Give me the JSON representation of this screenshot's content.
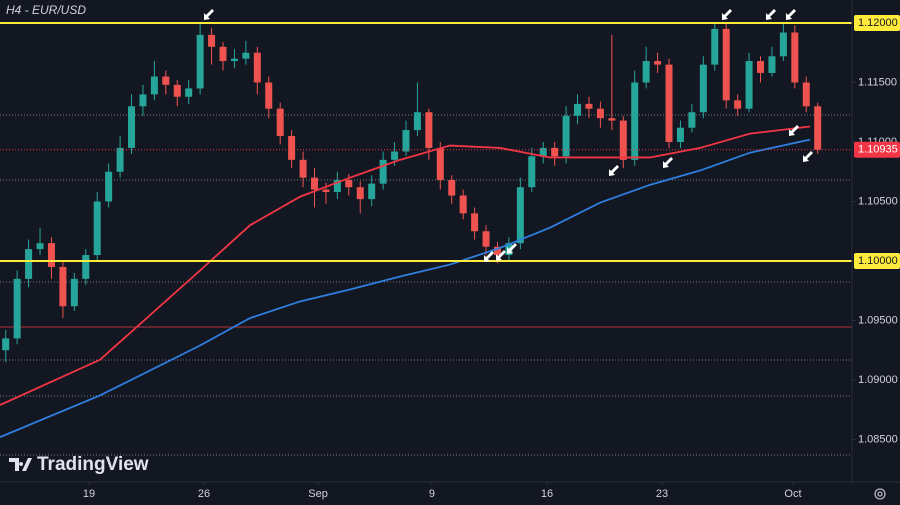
{
  "chart_data": {
    "type": "candlestick",
    "title": "H4 - EUR/USD",
    "watermark": "TradingView",
    "up_color": "#26a69a",
    "down_color": "#ef5350",
    "open": [
      1.0925,
      1.0935,
      1.0985,
      1.101,
      1.1015,
      1.0995,
      1.0962,
      1.0985,
      1.1005,
      1.105,
      1.1075,
      1.1095,
      1.113,
      1.114,
      1.1155,
      1.1148,
      1.1138,
      1.1145,
      1.119,
      1.118,
      1.1168,
      1.117,
      1.1175,
      1.115,
      1.1128,
      1.1105,
      1.1085,
      1.107,
      1.106,
      1.1058,
      1.1068,
      1.1062,
      1.1052,
      1.1065,
      1.1085,
      1.1092,
      1.111,
      1.1125,
      1.1095,
      1.1068,
      1.1055,
      1.104,
      1.1025,
      1.1012,
      1.1005,
      1.1015,
      1.1062,
      1.1088,
      1.1095,
      1.1088,
      1.1122,
      1.1132,
      1.1128,
      1.112,
      1.1118,
      1.1085,
      1.115,
      1.1168,
      1.1165,
      1.11,
      1.1112,
      1.1125,
      1.1165,
      1.1195,
      1.1135,
      1.1128,
      1.1168,
      1.1158,
      1.1172,
      1.1192,
      1.115,
      1.113
    ],
    "high": [
      1.0942,
      1.0992,
      1.1018,
      1.1028,
      1.102,
      1.1,
      1.099,
      1.101,
      1.1058,
      1.1082,
      1.1105,
      1.114,
      1.1148,
      1.1168,
      1.116,
      1.1152,
      1.1152,
      1.12,
      1.1196,
      1.1184,
      1.1178,
      1.1185,
      1.118,
      1.1155,
      1.1133,
      1.111,
      1.1092,
      1.1078,
      1.1066,
      1.1075,
      1.1073,
      1.1067,
      1.1072,
      1.1092,
      1.11,
      1.1118,
      1.115,
      1.1128,
      1.11,
      1.1072,
      1.106,
      1.1045,
      1.103,
      1.1016,
      1.102,
      1.107,
      1.1095,
      1.11,
      1.11,
      1.113,
      1.114,
      1.1138,
      1.1134,
      1.119,
      1.1122,
      1.116,
      1.118,
      1.1175,
      1.117,
      1.1118,
      1.1132,
      1.1172,
      1.12,
      1.12,
      1.114,
      1.1175,
      1.1172,
      1.118,
      1.12,
      1.1198,
      1.1155,
      1.1133
    ],
    "low": [
      1.0915,
      1.093,
      1.0978,
      1.1005,
      1.0985,
      1.0952,
      1.0958,
      1.098,
      1.1,
      1.1045,
      1.107,
      1.109,
      1.1122,
      1.1135,
      1.114,
      1.113,
      1.1132,
      1.114,
      1.1165,
      1.116,
      1.1162,
      1.1165,
      1.114,
      1.112,
      1.1098,
      1.1078,
      1.1062,
      1.1045,
      1.1048,
      1.1052,
      1.1055,
      1.104,
      1.1046,
      1.106,
      1.108,
      1.1088,
      1.1105,
      1.1085,
      1.106,
      1.1048,
      1.1035,
      1.1018,
      1.1005,
      1.0998,
      1.1,
      1.101,
      1.1058,
      1.1082,
      1.108,
      1.1082,
      1.1115,
      1.112,
      1.1112,
      1.111,
      1.1078,
      1.108,
      1.1145,
      1.1158,
      1.1095,
      1.1095,
      1.1108,
      1.112,
      1.116,
      1.1128,
      1.1122,
      1.1125,
      1.115,
      1.1155,
      1.1168,
      1.1145,
      1.1125,
      1.109
    ],
    "close": [
      1.0935,
      1.0985,
      1.101,
      1.1015,
      1.0995,
      1.0962,
      1.0985,
      1.1005,
      1.105,
      1.1075,
      1.1095,
      1.113,
      1.114,
      1.1155,
      1.1148,
      1.1138,
      1.1145,
      1.119,
      1.118,
      1.1168,
      1.117,
      1.1175,
      1.115,
      1.1128,
      1.1105,
      1.1085,
      1.107,
      1.106,
      1.1058,
      1.1068,
      1.1062,
      1.1052,
      1.1065,
      1.1085,
      1.1092,
      1.111,
      1.1125,
      1.1095,
      1.1068,
      1.1055,
      1.104,
      1.1025,
      1.1012,
      1.1005,
      1.1015,
      1.1062,
      1.1088,
      1.1095,
      1.1088,
      1.1122,
      1.1132,
      1.1128,
      1.112,
      1.1118,
      1.1085,
      1.115,
      1.1168,
      1.1165,
      1.11,
      1.1112,
      1.1125,
      1.1165,
      1.1195,
      1.1135,
      1.1128,
      1.1168,
      1.1158,
      1.1172,
      1.1192,
      1.115,
      1.113,
      1.10935
    ],
    "moving_averages": [
      {
        "color": "#f23645",
        "x": [
          -0.5,
          8.24,
          16.99,
          21.36,
          25.73,
          30.1,
          34.48,
          38.85,
          43.22,
          47.59,
          51.97,
          56.34,
          60.71,
          65.08,
          70.33
        ],
        "values": [
          1.0879,
          1.0917,
          1.0992,
          1.103,
          1.1054,
          1.107,
          1.1085,
          1.1097,
          1.1095,
          1.1087,
          1.1087,
          1.1087,
          1.1095,
          1.1107,
          1.1113
        ]
      },
      {
        "color": "#2f7fe0",
        "x": [
          -0.5,
          8.24,
          16.99,
          21.36,
          25.73,
          30.1,
          34.48,
          38.85,
          43.22,
          47.59,
          51.97,
          56.34,
          60.71,
          65.08,
          70.33
        ],
        "values": [
          1.0852,
          1.0887,
          1.0929,
          1.0952,
          1.0966,
          1.0976,
          1.0987,
          1.0997,
          1.1011,
          1.1028,
          1.1049,
          1.1064,
          1.1076,
          1.1091,
          1.1102
        ]
      }
    ],
    "levels": [
      {
        "value": 1.12,
        "color": "#ffeb3b"
      },
      {
        "value": 1.1,
        "color": "#ffeb3b"
      }
    ],
    "hlines": [
      {
        "value": 1.11227,
        "color": "#787b86",
        "style": "dotted"
      },
      {
        "value": 1.10681,
        "color": "#787b86",
        "style": "dotted"
      },
      {
        "value": 1.09824,
        "color": "#787b86",
        "style": "dotted"
      },
      {
        "value": 1.09168,
        "color": "#787b86",
        "style": "dotted"
      },
      {
        "value": 1.08866,
        "color": "#787b86",
        "style": "dotted"
      },
      {
        "value": 1.0837,
        "color": "#787b86",
        "style": "dotted"
      },
      {
        "value": 1.09445,
        "color": "#b2313a",
        "style": "solid"
      }
    ],
    "last_price_color": "#f23645",
    "xlim": [
      -0.5,
      74
    ],
    "ylim": [
      1.08143,
      1.12193
    ],
    "xticks": [
      {
        "value": 7.28,
        "label": "19"
      },
      {
        "value": 17.34,
        "label": "26"
      },
      {
        "value": 27.31,
        "label": "Sep"
      },
      {
        "value": 37.27,
        "label": "9"
      },
      {
        "value": 47.33,
        "label": "16"
      },
      {
        "value": 57.39,
        "label": "23"
      },
      {
        "value": 68.84,
        "label": "Oct"
      }
    ],
    "yticks": [
      {
        "value": 1.085,
        "label": "1.08500"
      },
      {
        "value": 1.09,
        "label": "1.09000"
      },
      {
        "value": 1.095,
        "label": "1.09500"
      },
      {
        "value": 1.1,
        "label": "1.10000"
      },
      {
        "value": 1.105,
        "label": "1.10500"
      },
      {
        "value": 1.11,
        "label": "1.11000"
      },
      {
        "value": 1.115,
        "label": "1.11500"
      },
      {
        "value": 1.12,
        "label": "1.12000"
      }
    ]
  }
}
